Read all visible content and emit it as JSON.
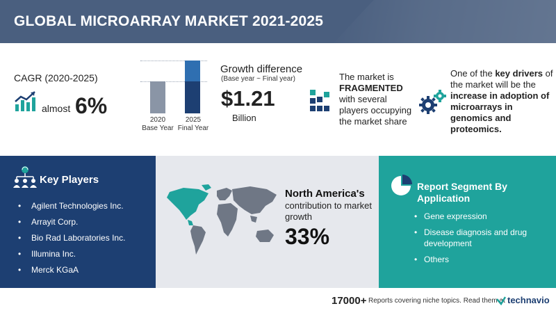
{
  "header": {
    "title": "GLOBAL MICROARRAY MARKET 2021-2025"
  },
  "cagr": {
    "label": "CAGR (2020-2025)",
    "prefix": "almost",
    "value": "6%"
  },
  "growth": {
    "bar_2020": {
      "year": "2020",
      "label": "Base Year"
    },
    "bar_2025": {
      "year": "2025",
      "label": "Final Year"
    },
    "title": "Growth difference",
    "subtitle": "(Base year ~ Final year)",
    "value": "$1.21",
    "unit": "Billion"
  },
  "market": {
    "line1": "The market is",
    "emphasis": "FRAGMENTED",
    "line2": "with several players occupying the market share"
  },
  "drivers": {
    "intro": "One of the ",
    "emphasis1": "key drivers",
    "middle": " of the market will be the ",
    "emphasis2": "increase in adoption of microarrays in genomics and proteomics."
  },
  "key_players": {
    "title": "Key Players",
    "items": [
      "Agilent Technologies Inc.",
      "Arrayit Corp.",
      "Bio Rad Laboratories Inc.",
      "Illumina Inc.",
      "Merck KGaA"
    ]
  },
  "region": {
    "title": "North America's",
    "text": "contribution to market growth",
    "value": "33%"
  },
  "segment": {
    "title": "Report Segment By Application",
    "items": [
      "Gene expression",
      "Disease diagnosis and drug development",
      "Others"
    ]
  },
  "footer": {
    "count": "17000+",
    "text": "Reports covering niche topics. Read them at",
    "brand": "technavio"
  },
  "colors": {
    "header": "#4a5f7f",
    "navy": "#1d3f72",
    "teal": "#1fa39c",
    "map_bg": "#e6e8ed",
    "north_america": "#1fa39c"
  }
}
